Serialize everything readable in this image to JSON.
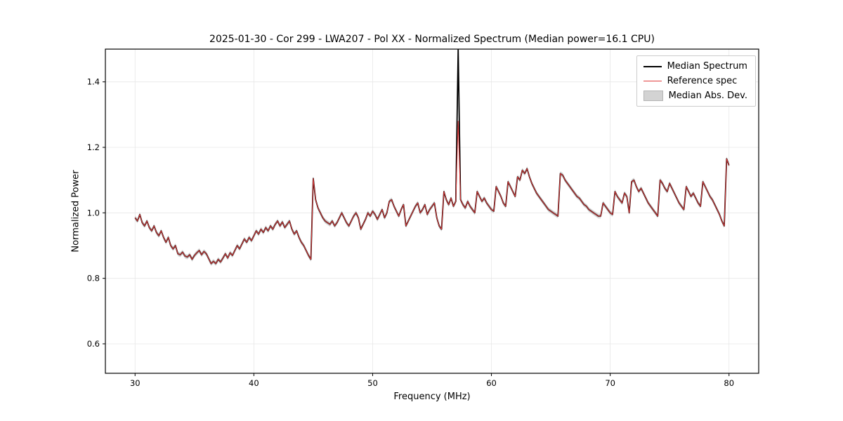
{
  "figure": {
    "title": "2025-01-30 - Cor 299 - LWA207 - Pol XX - Normalized Spectrum (Median power=16.1 CPU)",
    "xlabel": "Frequency (MHz)",
    "ylabel": "Normalized Power",
    "background_color": "#ffffff",
    "axes_color": "#000000",
    "grid_color": "#e7e7e7",
    "legend": {
      "position": "upper right",
      "items": [
        {
          "label": "Median Spectrum",
          "kind": "line",
          "color": "#000000",
          "stroke_width": 2.4
        },
        {
          "label": "Reference spec",
          "kind": "line",
          "color": "#e03a3a",
          "stroke_width": 1.2
        },
        {
          "label": "Median Abs. Dev.",
          "kind": "patch",
          "color": "#d3d3d3"
        }
      ]
    }
  },
  "chart_data": {
    "type": "line",
    "title": "2025-01-30 - Cor 299 - LWA207 - Pol XX - Normalized Spectrum (Median power=16.1 CPU)",
    "xlabel": "Frequency (MHz)",
    "ylabel": "Normalized Power",
    "xlim": [
      27.5,
      82.5
    ],
    "ylim": [
      0.51,
      1.5
    ],
    "xticks": [
      30,
      40,
      50,
      60,
      70,
      80
    ],
    "xtick_labels": [
      "30",
      "40",
      "50",
      "60",
      "70",
      "80"
    ],
    "yticks": [
      0.6,
      0.8,
      1.0,
      1.2,
      1.4
    ],
    "ytick_labels": [
      "0.6",
      "0.8",
      "1.0",
      "1.2",
      "1.4"
    ],
    "grid": true,
    "legend_position": "upper right",
    "x_start": 30.0,
    "x_step": 0.2,
    "series": [
      {
        "name": "Median Spectrum",
        "color": "#000000",
        "width": 1.8,
        "values": [
          0.985,
          0.975,
          0.995,
          0.97,
          0.96,
          0.975,
          0.955,
          0.945,
          0.96,
          0.94,
          0.93,
          0.945,
          0.925,
          0.91,
          0.925,
          0.9,
          0.89,
          0.9,
          0.875,
          0.872,
          0.88,
          0.868,
          0.865,
          0.872,
          0.858,
          0.87,
          0.878,
          0.885,
          0.872,
          0.882,
          0.875,
          0.86,
          0.845,
          0.852,
          0.845,
          0.858,
          0.85,
          0.862,
          0.875,
          0.862,
          0.878,
          0.87,
          0.885,
          0.9,
          0.89,
          0.905,
          0.92,
          0.91,
          0.925,
          0.915,
          0.93,
          0.945,
          0.935,
          0.95,
          0.94,
          0.955,
          0.945,
          0.96,
          0.95,
          0.965,
          0.975,
          0.96,
          0.972,
          0.955,
          0.965,
          0.975,
          0.95,
          0.935,
          0.945,
          0.925,
          0.91,
          0.9,
          0.885,
          0.87,
          0.858,
          1.105,
          1.04,
          1.015,
          1.0,
          0.985,
          0.975,
          0.97,
          0.965,
          0.975,
          0.96,
          0.97,
          0.985,
          1.0,
          0.985,
          0.97,
          0.96,
          0.975,
          0.99,
          1.0,
          0.985,
          0.95,
          0.965,
          0.98,
          1.0,
          0.99,
          1.005,
          0.995,
          0.98,
          0.995,
          1.01,
          0.985,
          1.0,
          1.035,
          1.04,
          1.02,
          1.005,
          0.99,
          1.01,
          1.025,
          0.96,
          0.975,
          0.99,
          1.005,
          1.02,
          1.03,
          1.0,
          1.01,
          1.025,
          0.995,
          1.01,
          1.02,
          1.03,
          0.985,
          0.96,
          0.95,
          1.065,
          1.04,
          1.025,
          1.045,
          1.02,
          1.035,
          1.5,
          1.04,
          1.025,
          1.015,
          1.035,
          1.02,
          1.01,
          1.0,
          1.065,
          1.05,
          1.035,
          1.045,
          1.03,
          1.02,
          1.01,
          1.005,
          1.08,
          1.065,
          1.05,
          1.03,
          1.02,
          1.095,
          1.08,
          1.065,
          1.05,
          1.11,
          1.1,
          1.13,
          1.12,
          1.135,
          1.11,
          1.09,
          1.075,
          1.06,
          1.05,
          1.04,
          1.03,
          1.02,
          1.01,
          1.005,
          1.0,
          0.995,
          0.99,
          1.12,
          1.115,
          1.1,
          1.09,
          1.08,
          1.07,
          1.06,
          1.05,
          1.045,
          1.035,
          1.025,
          1.02,
          1.01,
          1.005,
          1.0,
          0.995,
          0.99,
          0.99,
          1.03,
          1.02,
          1.01,
          1.0,
          0.995,
          1.065,
          1.05,
          1.04,
          1.03,
          1.06,
          1.05,
          1.0,
          1.095,
          1.1,
          1.08,
          1.065,
          1.075,
          1.06,
          1.045,
          1.03,
          1.02,
          1.01,
          1.0,
          0.99,
          1.1,
          1.09,
          1.075,
          1.065,
          1.09,
          1.075,
          1.06,
          1.045,
          1.03,
          1.02,
          1.01,
          1.08,
          1.065,
          1.05,
          1.06,
          1.045,
          1.03,
          1.02,
          1.095,
          1.08,
          1.065,
          1.05,
          1.04,
          1.025,
          1.01,
          0.995,
          0.975,
          0.96,
          1.165,
          1.145
        ]
      },
      {
        "name": "Reference spec",
        "color": "#e03a3a",
        "width": 1.0,
        "values_same_as": "Median Spectrum",
        "overrides": [
          {
            "x": 57.2,
            "value": 1.28
          }
        ]
      },
      {
        "name": "Median Abs. Dev.",
        "kind": "band",
        "around": "Median Spectrum",
        "band_halfwidth": 0.007,
        "color": "#c9c9c9",
        "opacity": 0.8
      }
    ]
  }
}
